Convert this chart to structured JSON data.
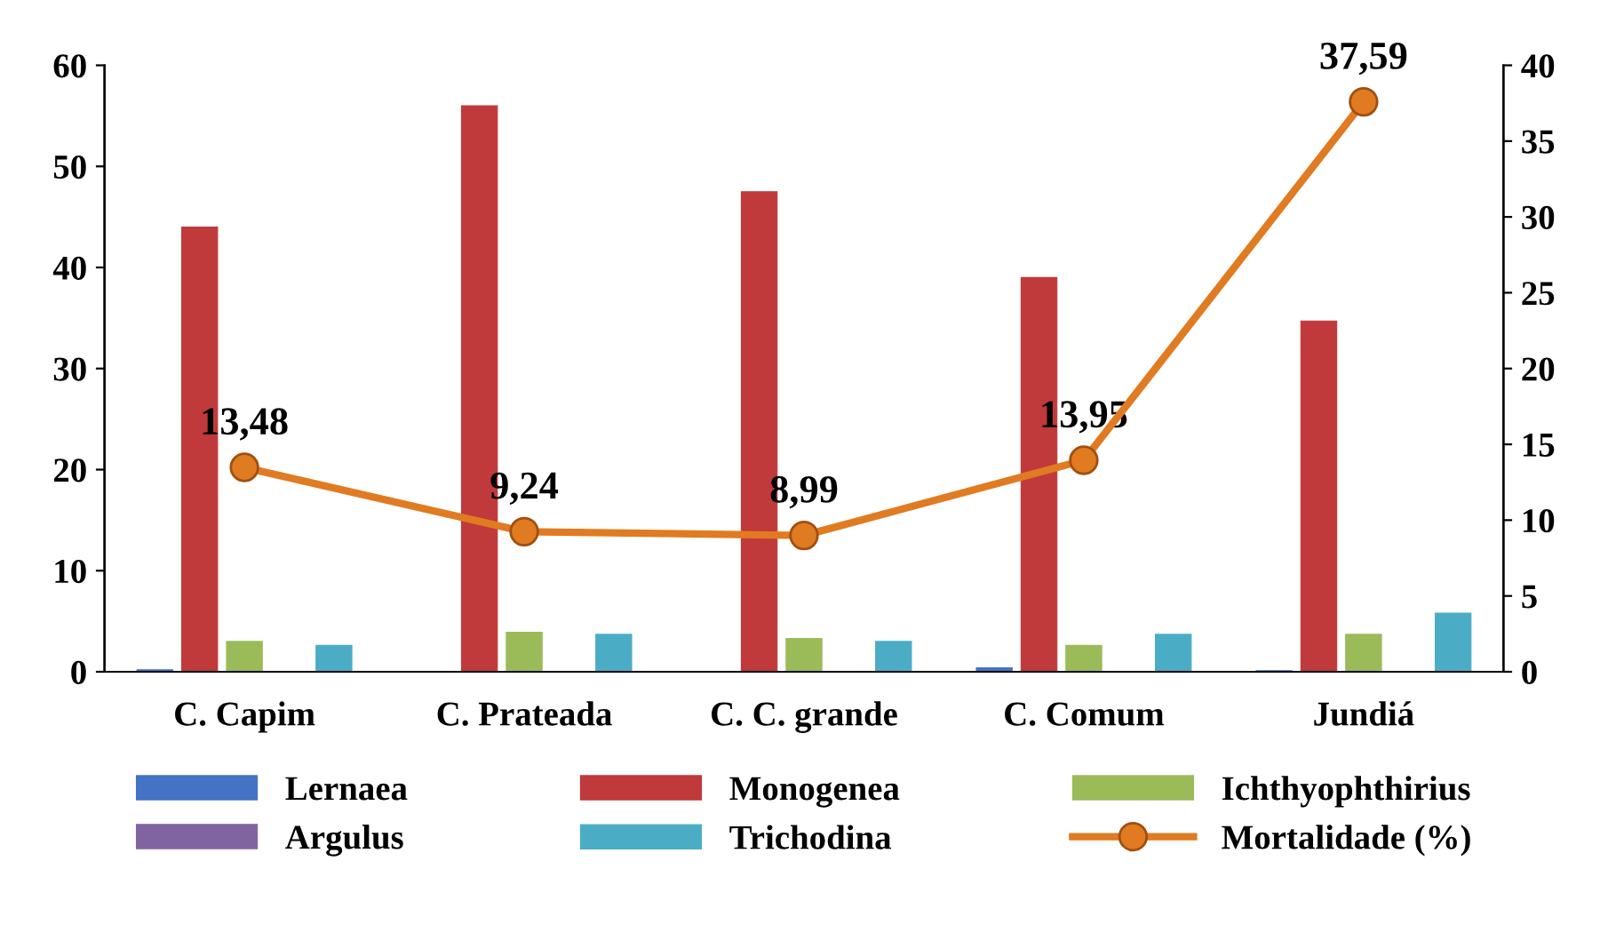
{
  "chart_data": {
    "type": "bar",
    "categories": [
      "C. Capim",
      "C. Prateada",
      "C. C. grande",
      "C. Comum",
      "Jundiá"
    ],
    "series": [
      {
        "name": "Lernaea",
        "color": "#4472c4",
        "values": [
          0.2,
          0,
          0,
          0.4,
          0.1
        ]
      },
      {
        "name": "Monogenea",
        "color": "#c0393b",
        "values": [
          44,
          56,
          47.5,
          39,
          34.7
        ]
      },
      {
        "name": "Ichthyophthirius",
        "color": "#9bbb59",
        "values": [
          3,
          3.9,
          3.3,
          2.6,
          3.7
        ]
      },
      {
        "name": "Argulus",
        "color": "#8064a2",
        "values": [
          0,
          0,
          0,
          0,
          0
        ]
      },
      {
        "name": "Trichodina",
        "color": "#4bacc6",
        "values": [
          2.6,
          3.7,
          3,
          3.7,
          5.8
        ]
      },
      {
        "name": "Mortalidade (%)",
        "type": "line",
        "axis": "y2",
        "color": "#e07b22",
        "marker": "circle",
        "values": [
          13.48,
          9.24,
          8.99,
          13.95,
          37.59
        ],
        "value_labels": [
          "13,48",
          "9,24",
          "8,99",
          "13,95",
          "37,59"
        ]
      }
    ],
    "ylim": [
      0,
      60
    ],
    "yticks": [
      0,
      10,
      20,
      30,
      40,
      50,
      60
    ],
    "y2lim": [
      0,
      40
    ],
    "y2ticks": [
      0,
      5,
      10,
      15,
      20,
      25,
      30,
      35,
      40
    ],
    "grid": false,
    "legend": "bottom"
  }
}
